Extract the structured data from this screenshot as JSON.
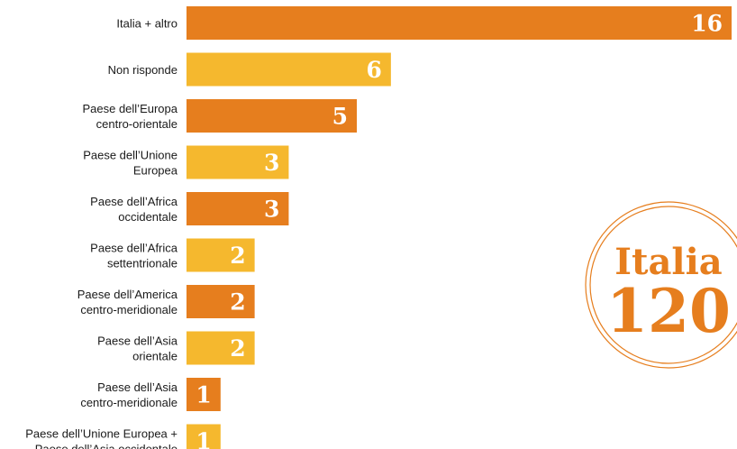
{
  "chart_data": {
    "type": "bar",
    "orientation": "horizontal",
    "categories": [
      [
        "Italia + altro"
      ],
      [
        "Non risponde"
      ],
      [
        "Paese dell’Europa",
        "centro-orientale"
      ],
      [
        "Paese dell’Unione",
        "Europea"
      ],
      [
        "Paese dell’Africa",
        "occidentale"
      ],
      [
        "Paese dell’Africa",
        "settentrionale"
      ],
      [
        "Paese dell’America",
        "centro-meridionale"
      ],
      [
        "Paese dell’Asia",
        "orientale"
      ],
      [
        "Paese dell’Asia",
        "centro-meridionale"
      ],
      [
        "Paese dell’Unione Europea +",
        "Paese dell’Asia occidentale"
      ]
    ],
    "values": [
      16,
      6,
      5,
      3,
      3,
      2,
      2,
      2,
      1,
      1
    ],
    "title": "",
    "xlabel": "",
    "ylabel": "",
    "xlim": [
      0,
      16
    ],
    "grid": false,
    "colors": {
      "orange": "#e67e1e",
      "yellow": "#f5b82e",
      "label_text": "#1a1a1a",
      "value_text": "#ffffff"
    },
    "bar_color_pattern": [
      "orange",
      "yellow",
      "orange",
      "yellow",
      "orange",
      "yellow",
      "orange",
      "yellow",
      "orange",
      "yellow"
    ]
  },
  "logo": {
    "line1": "Italia",
    "line2": "120",
    "color": "#e67e1e"
  }
}
